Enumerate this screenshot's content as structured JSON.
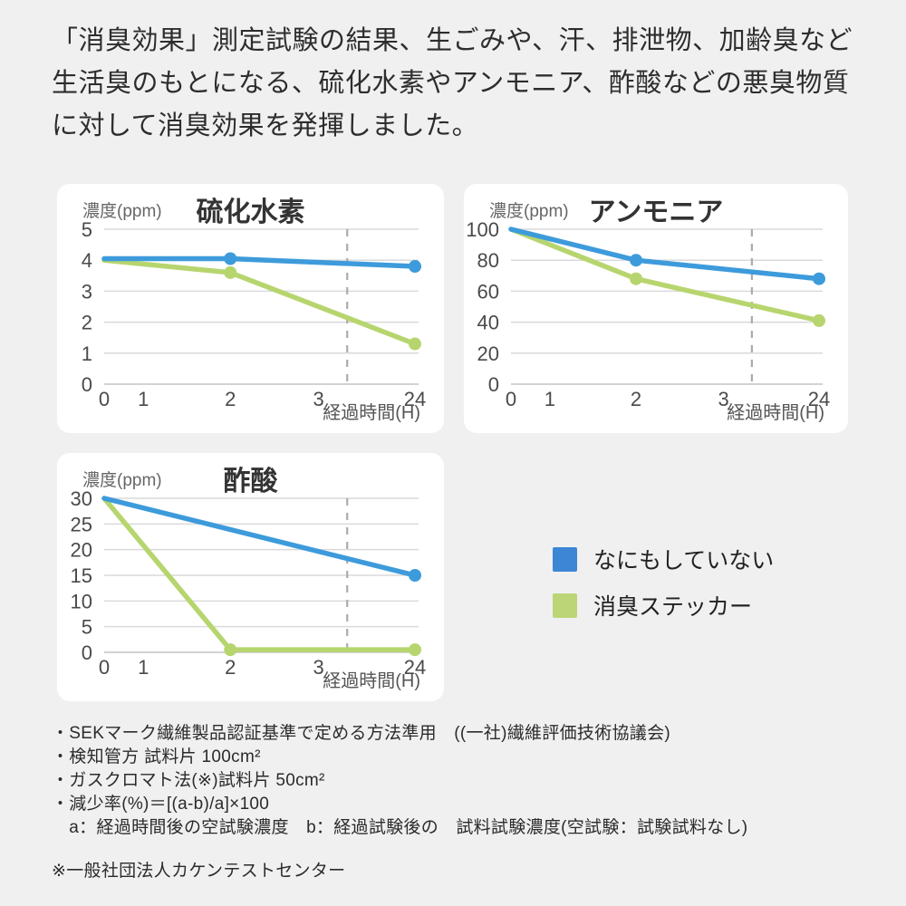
{
  "page": {
    "background": "#f0f0f0"
  },
  "header": {
    "text": "「消臭効果」測定試験の結果、生ごみや、汗、排泄物、加齢臭など生活臭のもとになる、硫化水素やアンモニア、酢酸などの悪臭物質に対して消臭効果を発揮しました。"
  },
  "colors": {
    "blue": "#3d9bdb",
    "green": "#b7d56e",
    "grid": "#dadada",
    "axis": "#c4c4c4",
    "dashed": "#ababab",
    "tick_text": "#4a4a4a"
  },
  "legend": {
    "items": [
      {
        "label": "なにもしていない",
        "color": "#3d86d6"
      },
      {
        "label": "消臭ステッカー",
        "color": "#bcd677"
      }
    ]
  },
  "chart_data": [
    {
      "type": "line",
      "title": "硫化水素",
      "ylabel": "濃度(ppm)",
      "xlabel": "経過時間(H)",
      "x_tick_labels": [
        "0",
        "1",
        "2",
        "3",
        "24"
      ],
      "x_positions": {
        "0": 0,
        "1": 0.126,
        "2": 0.406,
        "3": 0.69,
        "24": 1.0
      },
      "axis_break_x": 0.782,
      "ylim": [
        0,
        5
      ],
      "yticks": [
        0,
        1,
        2,
        3,
        4,
        5
      ],
      "grid": true,
      "series": [
        {
          "name": "なにもしていない",
          "color": "#3d9bdb",
          "points": [
            [
              0,
              4.05
            ],
            [
              2,
              4.05
            ],
            [
              24,
              3.8
            ]
          ],
          "dots": [
            2,
            24
          ]
        },
        {
          "name": "消臭ステッカー",
          "color": "#b7d56e",
          "points": [
            [
              0,
              4.0
            ],
            [
              2,
              3.6
            ],
            [
              24,
              1.3
            ]
          ],
          "dots": [
            2,
            24
          ]
        }
      ]
    },
    {
      "type": "line",
      "title": "アンモニア",
      "ylabel": "濃度(ppm)",
      "xlabel": "経過時間(H)",
      "x_tick_labels": [
        "0",
        "1",
        "2",
        "3",
        "24"
      ],
      "x_positions": {
        "0": 0,
        "1": 0.126,
        "2": 0.406,
        "3": 0.69,
        "24": 1.0
      },
      "axis_break_x": 0.782,
      "ylim": [
        0,
        100
      ],
      "yticks": [
        0,
        20,
        40,
        60,
        80,
        100
      ],
      "grid": true,
      "series": [
        {
          "name": "なにもしていない",
          "color": "#3d9bdb",
          "points": [
            [
              0,
              100
            ],
            [
              2,
              80
            ],
            [
              24,
              68
            ]
          ],
          "dots": [
            2,
            24
          ]
        },
        {
          "name": "消臭ステッカー",
          "color": "#b7d56e",
          "points": [
            [
              0,
              100
            ],
            [
              2,
              68
            ],
            [
              24,
              41
            ]
          ],
          "dots": [
            2,
            24
          ]
        }
      ]
    },
    {
      "type": "line",
      "title": "酢酸",
      "ylabel": "濃度(ppm)",
      "xlabel": "経過時間(H)",
      "x_tick_labels": [
        "0",
        "1",
        "2",
        "3",
        "24"
      ],
      "x_positions": {
        "0": 0,
        "1": 0.126,
        "2": 0.406,
        "3": 0.69,
        "24": 1.0
      },
      "axis_break_x": 0.782,
      "ylim": [
        0,
        30
      ],
      "yticks": [
        0,
        5,
        10,
        15,
        20,
        25,
        30
      ],
      "grid": true,
      "series": [
        {
          "name": "なにもしていない",
          "color": "#3d9bdb",
          "points": [
            [
              0,
              30
            ],
            [
              24,
              15
            ]
          ],
          "dots": [
            24
          ]
        },
        {
          "name": "消臭ステッカー",
          "color": "#b7d56e",
          "points": [
            [
              0,
              30
            ],
            [
              2,
              0.5
            ],
            [
              24,
              0.5
            ]
          ],
          "dots": [
            2,
            24
          ]
        }
      ]
    }
  ],
  "footnotes": {
    "lines": [
      "・SEKマーク繊維製品認証基準で定める方法準用　((一社)繊維評価技術協議会)",
      "・検知管方 試料片 100cm²",
      "・ガスクロマト法(※)試料片 50cm²",
      "・減少率(%)＝[(a-b)/a]×100",
      "　a：経過時間後の空試験濃度　b：経過試験後の　試料試験濃度(空試験：試験試料なし)"
    ],
    "source": "※一般社団法人カケンテストセンター"
  }
}
